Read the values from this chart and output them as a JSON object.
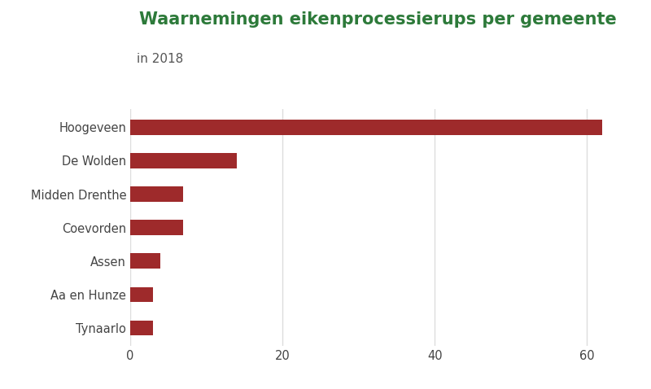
{
  "categories": [
    "Hoogeveen",
    "De Wolden",
    "Midden Drenthe",
    "Coevorden",
    "Assen",
    "Aa en Hunze",
    "Tynaarlo"
  ],
  "values": [
    62,
    14,
    7,
    7,
    4,
    3,
    3
  ],
  "bar_color": "#9e2a2b",
  "title": "Waarnemingen eikenprocessierups per gemeente",
  "subtitle": "in 2018",
  "title_color": "#2d7a3a",
  "subtitle_color": "#555555",
  "title_fontsize": 15,
  "subtitle_fontsize": 11,
  "xlim": [
    0,
    65
  ],
  "xticks": [
    0,
    20,
    40,
    60
  ],
  "background_color": "#ffffff",
  "grid_color": "#dddddd",
  "tick_color": "#444444",
  "label_fontsize": 10.5,
  "bar_height": 0.45
}
